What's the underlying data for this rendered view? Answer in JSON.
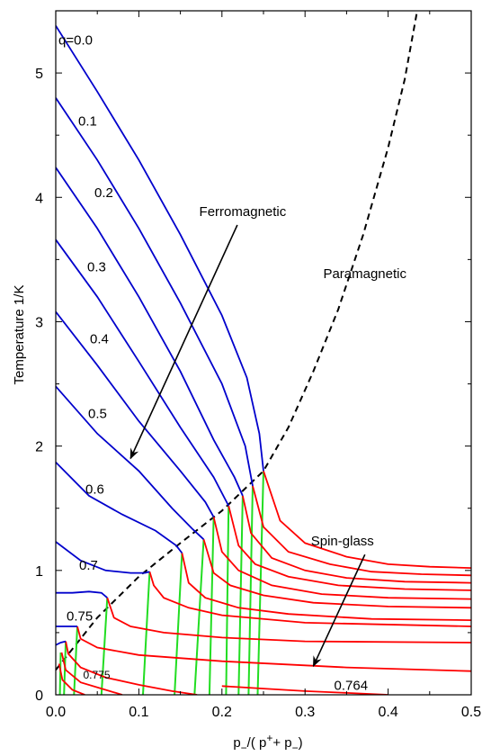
{
  "chart_data": {
    "type": "line",
    "title": "",
    "ylabel": "Temperature  1/K",
    "xlabel_parts": {
      "p1": "p",
      "s1": "−",
      "mid": "/( p",
      "s2": "+",
      "plus": "+ p",
      "s3": "−",
      "close": ")"
    },
    "xlim": [
      0,
      0.5
    ],
    "ylim": [
      0,
      5.5
    ],
    "x_ticks": [
      0.0,
      0.1,
      0.2,
      0.3,
      0.4,
      0.5
    ],
    "x_tick_labels": [
      "0.0",
      "0.1",
      "0.2",
      "0.3",
      "0.4",
      "0.5"
    ],
    "y_ticks": [
      0,
      1,
      2,
      3,
      4,
      5
    ],
    "y_tick_labels": [
      "0",
      "1",
      "2",
      "3",
      "4",
      "5"
    ],
    "colors": {
      "ferro": "#0000cc",
      "spinglass": "#ff0000",
      "mixed": "#22dd22",
      "boundary": "#000000"
    },
    "ferro_curves": [
      {
        "label": "q=0.0",
        "points": [
          [
            0,
            5.38
          ],
          [
            0.05,
            4.85
          ],
          [
            0.1,
            4.3
          ],
          [
            0.15,
            3.7
          ],
          [
            0.2,
            3.05
          ],
          [
            0.23,
            2.55
          ],
          [
            0.245,
            2.1
          ],
          [
            0.25,
            1.8
          ]
        ]
      },
      {
        "label": "0.1",
        "points": [
          [
            0,
            4.8
          ],
          [
            0.05,
            4.3
          ],
          [
            0.1,
            3.75
          ],
          [
            0.15,
            3.15
          ],
          [
            0.2,
            2.5
          ],
          [
            0.228,
            2.0
          ],
          [
            0.237,
            1.68
          ]
        ]
      },
      {
        "label": "0.2",
        "points": [
          [
            0,
            4.24
          ],
          [
            0.05,
            3.75
          ],
          [
            0.1,
            3.2
          ],
          [
            0.15,
            2.6
          ],
          [
            0.19,
            2.05
          ],
          [
            0.215,
            1.75
          ],
          [
            0.225,
            1.6
          ]
        ]
      },
      {
        "label": "0.3",
        "points": [
          [
            0,
            3.66
          ],
          [
            0.05,
            3.2
          ],
          [
            0.1,
            2.68
          ],
          [
            0.15,
            2.15
          ],
          [
            0.19,
            1.75
          ],
          [
            0.208,
            1.52
          ]
        ]
      },
      {
        "label": "0.4",
        "points": [
          [
            0,
            3.08
          ],
          [
            0.05,
            2.65
          ],
          [
            0.1,
            2.2
          ],
          [
            0.15,
            1.8
          ],
          [
            0.18,
            1.55
          ],
          [
            0.19,
            1.43
          ]
        ]
      },
      {
        "label": "0.5",
        "points": [
          [
            0,
            2.48
          ],
          [
            0.05,
            2.1
          ],
          [
            0.1,
            1.8
          ],
          [
            0.14,
            1.5
          ],
          [
            0.165,
            1.33
          ],
          [
            0.178,
            1.25
          ]
        ]
      },
      {
        "label": "0.6",
        "points": [
          [
            0,
            1.87
          ],
          [
            0.04,
            1.6
          ],
          [
            0.08,
            1.45
          ],
          [
            0.12,
            1.32
          ],
          [
            0.145,
            1.2
          ],
          [
            0.152,
            1.14
          ]
        ]
      },
      {
        "label": "0.7",
        "points": [
          [
            0,
            1.23
          ],
          [
            0.03,
            1.08
          ],
          [
            0.06,
            1.0
          ],
          [
            0.09,
            0.98
          ],
          [
            0.107,
            0.98
          ],
          [
            0.113,
            0.99
          ]
        ]
      },
      {
        "label": "0.75",
        "points": [
          [
            0,
            0.82
          ],
          [
            0.02,
            0.82
          ],
          [
            0.04,
            0.83
          ],
          [
            0.055,
            0.82
          ],
          [
            0.062,
            0.78
          ]
        ]
      },
      {
        "label": "",
        "points": [
          [
            0,
            0.55
          ],
          [
            0.01,
            0.55
          ],
          [
            0.02,
            0.55
          ],
          [
            0.026,
            0.55
          ]
        ]
      },
      {
        "label": "",
        "points": [
          [
            0,
            0.4
          ],
          [
            0.006,
            0.42
          ],
          [
            0.012,
            0.43
          ]
        ]
      }
    ],
    "spinglass_curves": [
      {
        "label": "",
        "points": [
          [
            0.25,
            1.8
          ],
          [
            0.27,
            1.4
          ],
          [
            0.3,
            1.22
          ],
          [
            0.35,
            1.11
          ],
          [
            0.4,
            1.05
          ],
          [
            0.45,
            1.03
          ],
          [
            0.5,
            1.02
          ]
        ]
      },
      {
        "label": "",
        "points": [
          [
            0.237,
            1.68
          ],
          [
            0.25,
            1.35
          ],
          [
            0.28,
            1.15
          ],
          [
            0.33,
            1.05
          ],
          [
            0.38,
            0.99
          ],
          [
            0.44,
            0.97
          ],
          [
            0.5,
            0.96
          ]
        ]
      },
      {
        "label": "",
        "points": [
          [
            0.225,
            1.6
          ],
          [
            0.235,
            1.3
          ],
          [
            0.26,
            1.1
          ],
          [
            0.3,
            1.0
          ],
          [
            0.35,
            0.94
          ],
          [
            0.42,
            0.91
          ],
          [
            0.5,
            0.9
          ]
        ]
      },
      {
        "label": "",
        "points": [
          [
            0.208,
            1.52
          ],
          [
            0.22,
            1.2
          ],
          [
            0.24,
            1.05
          ],
          [
            0.28,
            0.95
          ],
          [
            0.34,
            0.88
          ],
          [
            0.42,
            0.85
          ],
          [
            0.5,
            0.84
          ]
        ]
      },
      {
        "label": "",
        "points": [
          [
            0.19,
            1.43
          ],
          [
            0.2,
            1.15
          ],
          [
            0.22,
            1.0
          ],
          [
            0.26,
            0.88
          ],
          [
            0.32,
            0.81
          ],
          [
            0.4,
            0.78
          ],
          [
            0.5,
            0.77
          ]
        ]
      },
      {
        "label": "",
        "points": [
          [
            0.178,
            1.25
          ],
          [
            0.19,
            0.98
          ],
          [
            0.21,
            0.88
          ],
          [
            0.25,
            0.8
          ],
          [
            0.31,
            0.74
          ],
          [
            0.4,
            0.71
          ],
          [
            0.5,
            0.7
          ]
        ]
      },
      {
        "label": "",
        "points": [
          [
            0.152,
            1.14
          ],
          [
            0.16,
            0.9
          ],
          [
            0.18,
            0.78
          ],
          [
            0.22,
            0.7
          ],
          [
            0.28,
            0.65
          ],
          [
            0.38,
            0.61
          ],
          [
            0.5,
            0.6
          ]
        ]
      },
      {
        "label": "",
        "points": [
          [
            0.113,
            0.99
          ],
          [
            0.118,
            0.88
          ],
          [
            0.13,
            0.78
          ],
          [
            0.16,
            0.7
          ],
          [
            0.2,
            0.64
          ],
          [
            0.3,
            0.58
          ],
          [
            0.5,
            0.55
          ]
        ]
      },
      {
        "label": "",
        "points": [
          [
            0.062,
            0.78
          ],
          [
            0.07,
            0.62
          ],
          [
            0.09,
            0.55
          ],
          [
            0.13,
            0.5
          ],
          [
            0.2,
            0.46
          ],
          [
            0.3,
            0.43
          ],
          [
            0.5,
            0.42
          ]
        ]
      },
      {
        "label": "0.764",
        "points": [
          [
            0.026,
            0.55
          ],
          [
            0.03,
            0.45
          ],
          [
            0.05,
            0.38
          ],
          [
            0.1,
            0.32
          ],
          [
            0.2,
            0.27
          ],
          [
            0.35,
            0.22
          ],
          [
            0.5,
            0.19
          ]
        ]
      },
      {
        "label": "0.775",
        "points": [
          [
            0.012,
            0.43
          ],
          [
            0.015,
            0.33
          ],
          [
            0.03,
            0.22
          ],
          [
            0.06,
            0.14
          ],
          [
            0.1,
            0.08
          ],
          [
            0.14,
            0.03
          ],
          [
            0.17,
            0.0
          ]
        ]
      },
      {
        "label": "",
        "points": [
          [
            0.007,
            0.34
          ],
          [
            0.012,
            0.2
          ],
          [
            0.03,
            0.1
          ],
          [
            0.06,
            0.04
          ],
          [
            0.08,
            0.0
          ]
        ]
      },
      {
        "label": "",
        "points": [
          [
            0.004,
            0.25
          ],
          [
            0.008,
            0.12
          ],
          [
            0.02,
            0.04
          ],
          [
            0.035,
            0.0
          ]
        ]
      },
      {
        "label": "",
        "points": [
          [
            0.2,
            0.07
          ],
          [
            0.25,
            0.05
          ],
          [
            0.3,
            0.03
          ],
          [
            0.35,
            0.015
          ],
          [
            0.4,
            0.0
          ]
        ]
      }
    ],
    "mixed_lines": [
      [
        [
          0.25,
          1.8
        ],
        [
          0.243,
          0.0
        ]
      ],
      [
        [
          0.237,
          1.68
        ],
        [
          0.232,
          0.0
        ]
      ],
      [
        [
          0.225,
          1.6
        ],
        [
          0.22,
          0.0
        ]
      ],
      [
        [
          0.208,
          1.52
        ],
        [
          0.205,
          0.0
        ]
      ],
      [
        [
          0.19,
          1.43
        ],
        [
          0.185,
          0.0
        ]
      ],
      [
        [
          0.178,
          1.25
        ],
        [
          0.167,
          0.0
        ]
      ],
      [
        [
          0.152,
          1.14
        ],
        [
          0.143,
          0.0
        ]
      ],
      [
        [
          0.113,
          0.99
        ],
        [
          0.105,
          0.0
        ]
      ],
      [
        [
          0.062,
          0.78
        ],
        [
          0.055,
          0.0
        ]
      ],
      [
        [
          0.026,
          0.55
        ],
        [
          0.022,
          0.0
        ]
      ],
      [
        [
          0.012,
          0.43
        ],
        [
          0.01,
          0.0
        ]
      ],
      [
        [
          0.006,
          0.34
        ],
        [
          0.005,
          0.0
        ]
      ]
    ],
    "boundary_line": [
      [
        0,
        0.2
      ],
      [
        0.05,
        0.62
      ],
      [
        0.1,
        0.95
      ],
      [
        0.15,
        1.22
      ],
      [
        0.2,
        1.48
      ],
      [
        0.25,
        1.8
      ],
      [
        0.28,
        2.15
      ],
      [
        0.31,
        2.6
      ],
      [
        0.34,
        3.1
      ],
      [
        0.37,
        3.7
      ],
      [
        0.4,
        4.4
      ],
      [
        0.42,
        4.95
      ],
      [
        0.435,
        5.5
      ]
    ],
    "annotations": [
      {
        "text": "Ferromagnetic",
        "x": 0.225,
        "y": 3.85,
        "arrow_to": [
          0.09,
          1.9
        ]
      },
      {
        "text": "Paramagnetic",
        "x": 0.372,
        "y": 3.35,
        "arrow_to": null
      },
      {
        "text": "Spin-glass",
        "x": 0.345,
        "y": 1.2,
        "arrow_to": [
          0.31,
          0.23
        ]
      }
    ]
  }
}
